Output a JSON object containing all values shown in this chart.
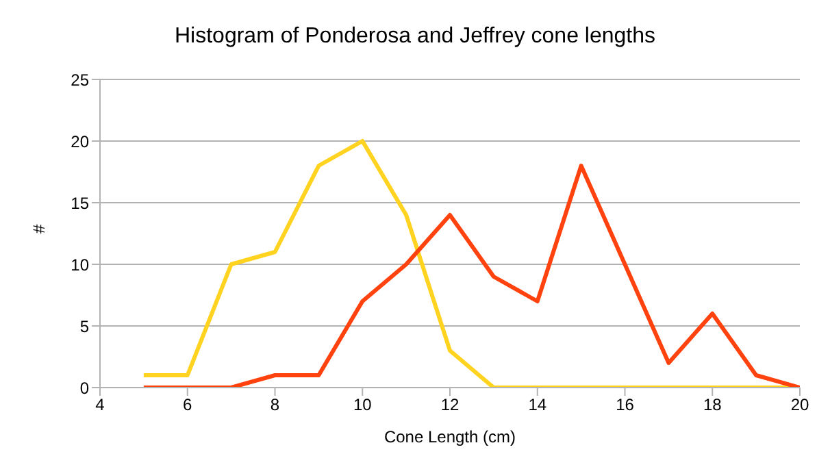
{
  "chart_data": {
    "type": "line",
    "title": "Histogram of Ponderosa and Jeffrey cone lengths",
    "xlabel": "Cone Length (cm)",
    "ylabel": "#",
    "x": [
      5,
      6,
      7,
      8,
      9,
      10,
      11,
      12,
      13,
      14,
      15,
      16,
      17,
      18,
      19,
      20
    ],
    "series": [
      {
        "color": "#ffd320",
        "values": [
          1,
          1,
          10,
          11,
          18,
          20,
          14,
          3,
          0,
          0,
          0,
          0,
          0,
          0,
          0,
          0
        ]
      },
      {
        "color": "#ff420e",
        "values": [
          0,
          0,
          0,
          1,
          1,
          7,
          10,
          14,
          9,
          7,
          18,
          10,
          2,
          6,
          1,
          0
        ]
      }
    ],
    "xlim": [
      4,
      20
    ],
    "xticks": [
      4,
      6,
      8,
      10,
      12,
      14,
      16,
      18,
      20
    ],
    "ylim": [
      0,
      25
    ],
    "yticks": [
      0,
      5,
      10,
      15,
      20,
      25
    ],
    "grid": "y",
    "legend": false
  }
}
